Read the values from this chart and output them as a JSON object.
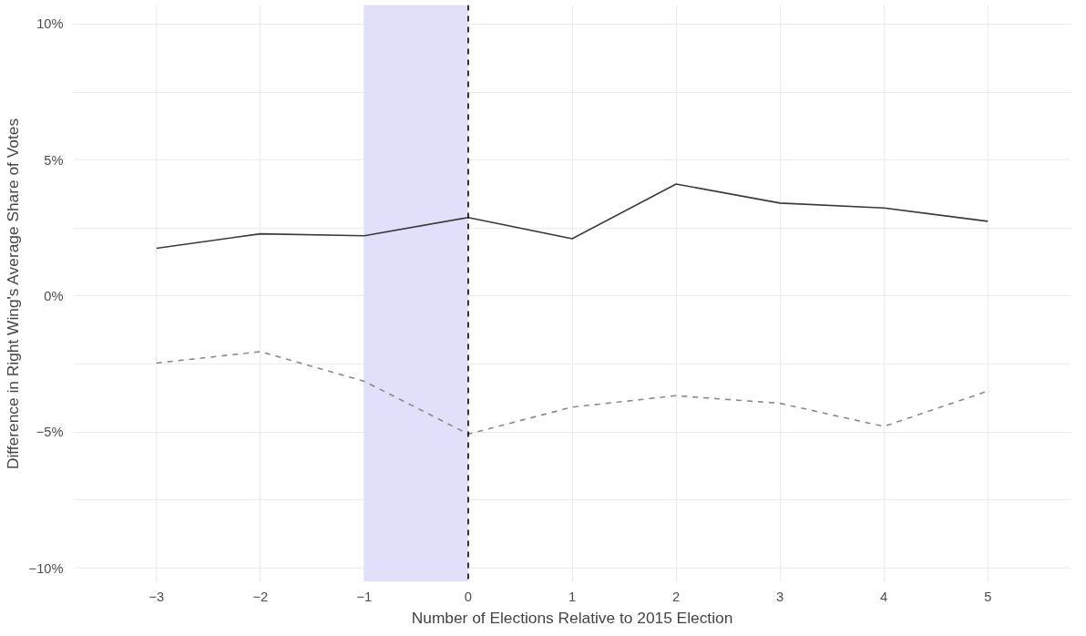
{
  "chart_data": {
    "type": "line",
    "xlabel": "Number of Elections Relative to 2015 Election",
    "ylabel": "Difference in Right Wing's Average Share of Votes",
    "x": [
      -3,
      -2,
      -1,
      0,
      1,
      2,
      3,
      4,
      5
    ],
    "series": [
      {
        "color": "#3a3a3a",
        "line_style": "solid",
        "values": [
          1.76,
          2.29,
          2.22,
          2.89,
          2.11,
          4.12,
          3.42,
          3.24,
          2.75
        ]
      },
      {
        "color": "#8a8a8a",
        "line_style": "dashed",
        "values": [
          -2.46,
          -2.04,
          -3.13,
          -5.07,
          -4.08,
          -3.66,
          -3.94,
          -4.79,
          -3.49
        ]
      }
    ],
    "xlim": [
      -3.8,
      5.8
    ],
    "ylim": [
      -10.5,
      10.7
    ],
    "xticks": [
      {
        "value": -3,
        "label": "−3"
      },
      {
        "value": -2,
        "label": "−2"
      },
      {
        "value": -1,
        "label": "−1"
      },
      0,
      1,
      2,
      3,
      4,
      5
    ],
    "yticks": [
      {
        "value": -10,
        "label": "−10%"
      },
      {
        "value": -7.5,
        "label": null
      },
      {
        "value": -5,
        "label": "−5%"
      },
      {
        "value": -2.5,
        "label": null
      },
      {
        "value": 0,
        "label": "0%"
      },
      {
        "value": 2.5,
        "label": null
      },
      {
        "value": 5,
        "label": "5%"
      },
      {
        "value": 7.5,
        "label": null
      },
      {
        "value": 10,
        "label": "10%"
      }
    ],
    "bands": [
      {
        "axis": "x",
        "from": -1,
        "to": 0,
        "color": "#e0e0fb"
      }
    ],
    "ref_lines": [
      {
        "axis": "x",
        "value": 0,
        "color": "#000000",
        "line_style": "dashed"
      }
    ],
    "grid": true,
    "marker": "none"
  }
}
